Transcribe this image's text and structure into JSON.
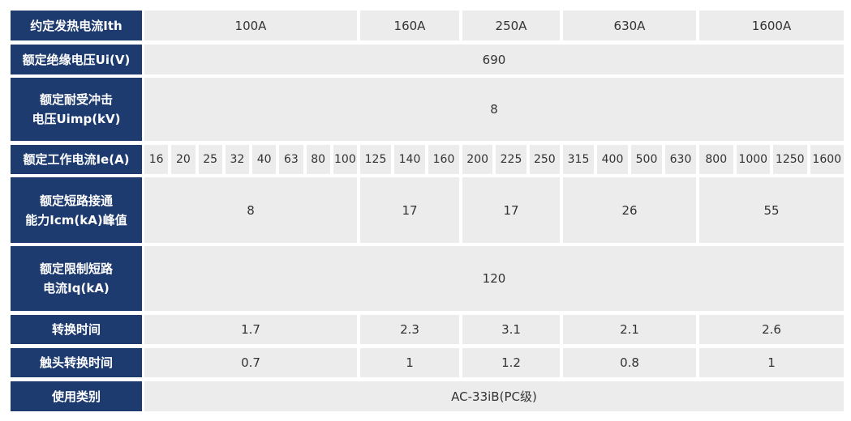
{
  "table": {
    "rows": [
      {
        "label": "约定发热电流Ith",
        "cells": [
          "100A",
          "160A",
          "250A",
          "630A",
          "1600A"
        ]
      },
      {
        "label": "额定绝缘电压Ui(V)",
        "cells": [
          "690"
        ]
      },
      {
        "label": "额定耐受冲击\n电压Uimp(kV)",
        "cells": [
          "8"
        ]
      },
      {
        "label": "额定工作电流Ie(A)",
        "cells": [
          "16",
          "20",
          "25",
          "32",
          "40",
          "63",
          "80",
          "100",
          "125",
          "140",
          "160",
          "200",
          "225",
          "250",
          "315",
          "400",
          "500",
          "630",
          "800",
          "1000",
          "1250",
          "1600"
        ]
      },
      {
        "label": "额定短路接通\n能力Icm(kA)峰值",
        "cells": [
          "8",
          "17",
          "17",
          "26",
          "55"
        ]
      },
      {
        "label": "额定限制短路\n电流Iq(kA)",
        "cells": [
          "120"
        ]
      },
      {
        "label": "转换时间",
        "cells": [
          "1.7",
          "2.3",
          "3.1",
          "2.1",
          "2.6"
        ]
      },
      {
        "label": "触头转换时间",
        "cells": [
          "0.7",
          "1",
          "1.2",
          "0.8",
          "1"
        ]
      },
      {
        "label": "使用类别",
        "cells": [
          "AC-33iB(PC级)"
        ]
      }
    ]
  }
}
